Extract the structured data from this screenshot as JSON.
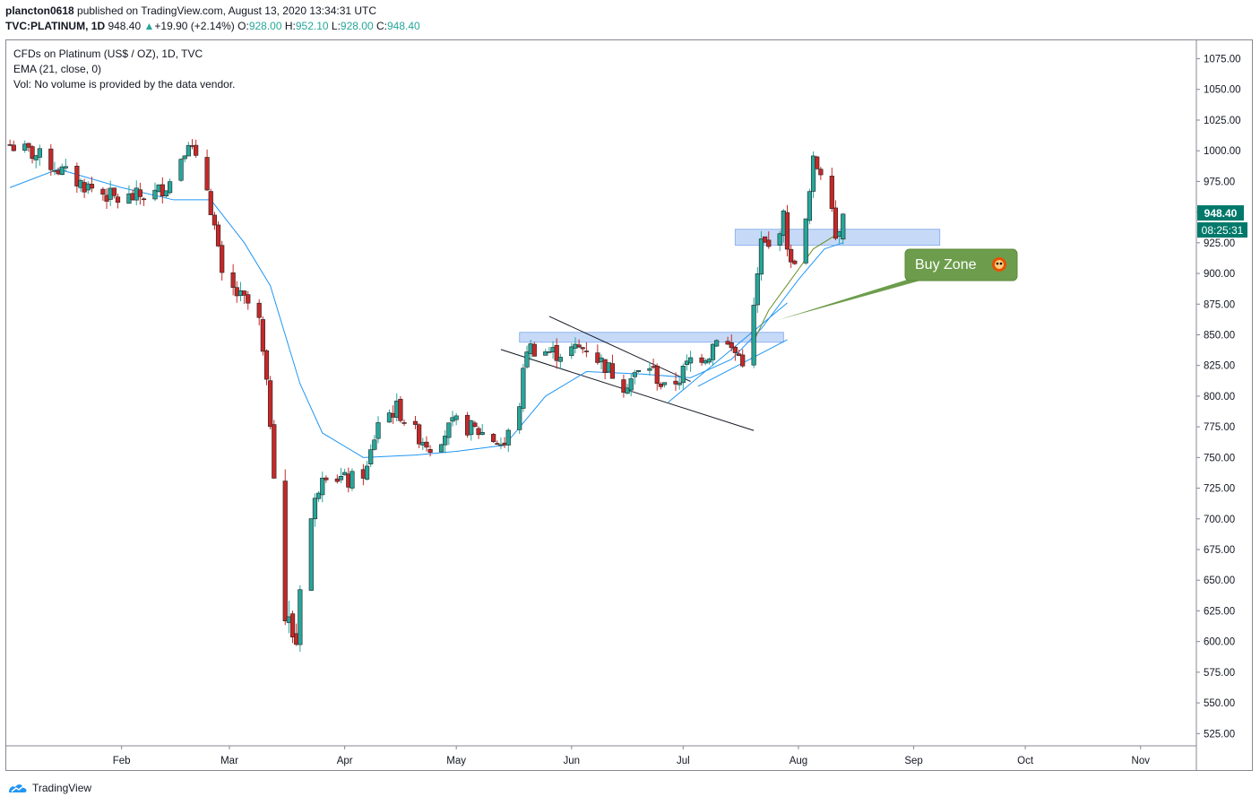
{
  "header": {
    "author": "plancton0618",
    "published": " published on TradingView.com, August 13, 2020 13:34:31 UTC",
    "symbol": "TVC:PLATINUM, 1D",
    "price": "948.40",
    "change": "+19.90 (+2.14%)",
    "o_label": "O:",
    "o_value": "928.00",
    "h_label": "H:",
    "h_value": "952.10",
    "l_label": "L:",
    "l_value": "928.00",
    "c_label": "C:",
    "c_value": "948.40"
  },
  "footer": {
    "brand": "TradingView",
    "logo_icon": "tradingview-logo-icon"
  },
  "colors": {
    "up": "#26a69a",
    "down": "#c62828",
    "ema": "#2196f3",
    "zone": "#b3cdf5",
    "callout": "#6d9d4c",
    "priceTag": "#00796b"
  },
  "chart_data": {
    "type": "candlestick",
    "title": "CFDs on Platinum (US$ / OZ), 1D, TVC",
    "legend": [
      "EMA (21, close, 0)",
      "Vol: No volume is provided by the data vendor."
    ],
    "ylim": [
      515,
      1090
    ],
    "y_ticks": [
      "1075.00",
      "1050.00",
      "1025.00",
      "1000.00",
      "975.00",
      "950.00",
      "925.00",
      "900.00",
      "875.00",
      "850.00",
      "825.00",
      "800.00",
      "775.00",
      "750.00",
      "725.00",
      "700.00",
      "675.00",
      "650.00",
      "625.00",
      "600.00",
      "575.00",
      "550.00",
      "525.00"
    ],
    "x_ticks": [
      "Feb",
      "Mar",
      "Apr",
      "May",
      "Jun",
      "Jul",
      "Aug",
      "Sep",
      "Oct",
      "Nov"
    ],
    "x_tick_dates": [
      "2020-02-01",
      "2020-03-01",
      "2020-04-01",
      "2020-05-01",
      "2020-06-01",
      "2020-07-01",
      "2020-08-01",
      "2020-09-01",
      "2020-10-01",
      "2020-11-01"
    ],
    "last_price": "948.40",
    "countdown": "08:25:31",
    "annotation": "Buy Zone",
    "annotation_icon": "alert-face-icon",
    "series_points": [
      [
        "2020-01-02",
        1005
      ],
      [
        "2020-01-10",
        995
      ],
      [
        "2020-01-20",
        975
      ],
      [
        "2020-01-31",
        960
      ],
      [
        "2020-02-10",
        965
      ],
      [
        "2020-02-14",
        975
      ],
      [
        "2020-02-19",
        1010
      ],
      [
        "2020-02-21",
        990
      ],
      [
        "2020-02-24",
        970
      ],
      [
        "2020-02-26",
        938
      ],
      [
        "2020-02-28",
        895
      ],
      [
        "2020-03-04",
        880
      ],
      [
        "2020-03-06",
        875
      ],
      [
        "2020-03-09",
        860
      ],
      [
        "2020-03-12",
        780
      ],
      [
        "2020-03-16",
        620
      ],
      [
        "2020-03-19",
        600
      ],
      [
        "2020-03-20",
        652
      ],
      [
        "2020-03-23",
        700
      ],
      [
        "2020-03-26",
        740
      ],
      [
        "2020-04-02",
        730
      ],
      [
        "2020-04-07",
        740
      ],
      [
        "2020-04-10",
        780
      ],
      [
        "2020-04-15",
        790
      ],
      [
        "2020-04-20",
        770
      ],
      [
        "2020-04-24",
        760
      ],
      [
        "2020-05-01",
        778
      ],
      [
        "2020-05-08",
        770
      ],
      [
        "2020-05-14",
        760
      ],
      [
        "2020-05-18",
        795
      ],
      [
        "2020-05-20",
        840
      ],
      [
        "2020-05-28",
        835
      ],
      [
        "2020-06-05",
        840
      ],
      [
        "2020-06-10",
        825
      ],
      [
        "2020-06-15",
        810
      ],
      [
        "2020-06-22",
        825
      ],
      [
        "2020-06-26",
        805
      ],
      [
        "2020-06-30",
        815
      ],
      [
        "2020-07-03",
        830
      ],
      [
        "2020-07-08",
        835
      ],
      [
        "2020-07-10",
        850
      ],
      [
        "2020-07-14",
        838
      ],
      [
        "2020-07-17",
        830
      ],
      [
        "2020-07-20",
        870
      ],
      [
        "2020-07-22",
        925
      ],
      [
        "2020-07-24",
        920
      ],
      [
        "2020-07-28",
        945
      ],
      [
        "2020-07-30",
        905
      ],
      [
        "2020-08-03",
        940
      ],
      [
        "2020-08-05",
        990
      ],
      [
        "2020-08-07",
        985
      ],
      [
        "2020-08-10",
        960
      ],
      [
        "2020-08-11",
        930
      ],
      [
        "2020-08-13",
        948.4
      ]
    ],
    "ema_points": [
      [
        "2020-01-02",
        970
      ],
      [
        "2020-01-15",
        985
      ],
      [
        "2020-02-01",
        970
      ],
      [
        "2020-02-15",
        960
      ],
      [
        "2020-02-25",
        960
      ],
      [
        "2020-03-05",
        925
      ],
      [
        "2020-03-12",
        890
      ],
      [
        "2020-03-20",
        810
      ],
      [
        "2020-03-26",
        770
      ],
      [
        "2020-04-06",
        750
      ],
      [
        "2020-04-20",
        752
      ],
      [
        "2020-05-01",
        755
      ],
      [
        "2020-05-14",
        760
      ],
      [
        "2020-05-25",
        800
      ],
      [
        "2020-06-05",
        820
      ],
      [
        "2020-06-20",
        818
      ],
      [
        "2020-07-03",
        815
      ],
      [
        "2020-07-14",
        830
      ],
      [
        "2020-07-22",
        855
      ],
      [
        "2020-08-01",
        895
      ],
      [
        "2020-08-08",
        920
      ],
      [
        "2020-08-13",
        925
      ]
    ],
    "ema_fast_points": [
      [
        "2020-07-20",
        845
      ],
      [
        "2020-07-24",
        870
      ],
      [
        "2020-07-30",
        895
      ],
      [
        "2020-08-05",
        920
      ],
      [
        "2020-08-13",
        935
      ]
    ],
    "zones": [
      {
        "from": "2020-05-18",
        "to": "2020-07-28",
        "low": 844,
        "high": 852
      },
      {
        "from": "2020-07-15",
        "to": "2020-09-08",
        "low": 923,
        "high": 936
      }
    ],
    "trendlines": [
      {
        "from": [
          "2020-05-26",
          865
        ],
        "to": [
          "2020-07-03",
          812
        ],
        "color": "#131722"
      },
      {
        "from": [
          "2020-05-13",
          838
        ],
        "to": [
          "2020-07-20",
          772
        ],
        "color": "#131722"
      },
      {
        "from": [
          "2020-06-27",
          795
        ],
        "to": [
          "2020-07-29",
          876
        ],
        "color": "#2196f3"
      },
      {
        "from": [
          "2020-07-05",
          808
        ],
        "to": [
          "2020-07-29",
          846
        ],
        "color": "#2196f3"
      }
    ]
  }
}
